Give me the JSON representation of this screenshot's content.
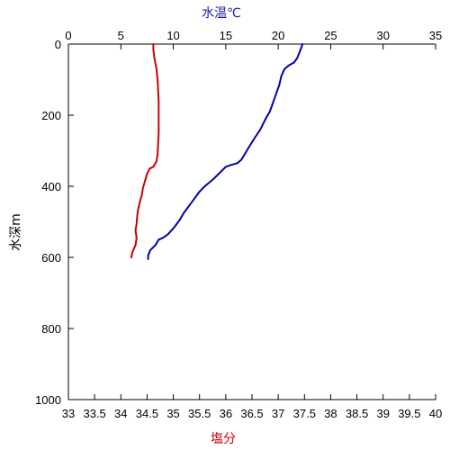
{
  "chart_data": {
    "type": "line",
    "top_axis": {
      "label": "水温℃",
      "label_color": "#1a1aa8",
      "range": [
        0,
        35
      ],
      "ticks": [
        "0",
        "5",
        "10",
        "15",
        "20",
        "25",
        "30",
        "35"
      ],
      "tick_values": [
        0,
        5,
        10,
        15,
        20,
        25,
        30,
        35
      ]
    },
    "bottom_axis": {
      "label": "塩分",
      "label_color": "#cc0000",
      "range": [
        33,
        40
      ],
      "ticks": [
        "33",
        "33.5",
        "34",
        "34.5",
        "35",
        "35.5",
        "36",
        "36.5",
        "37",
        "37.5",
        "38",
        "38.5",
        "39",
        "39.5",
        "40"
      ],
      "tick_values": [
        33,
        33.5,
        34,
        34.5,
        35,
        35.5,
        36,
        36.5,
        37,
        37.5,
        38,
        38.5,
        39,
        39.5,
        40
      ]
    },
    "y_axis": {
      "label": "水深m",
      "label_color": "#000000",
      "range": [
        0,
        1000
      ],
      "inverted": true,
      "ticks": [
        "0",
        "200",
        "400",
        "600",
        "800",
        "1000"
      ],
      "tick_values": [
        0,
        200,
        400,
        600,
        800,
        1000
      ]
    },
    "grid": false,
    "series": [
      {
        "axis": "top",
        "color": "#0000aa",
        "points": [
          [
            22.3,
            0
          ],
          [
            22.2,
            10
          ],
          [
            22.0,
            25
          ],
          [
            21.8,
            40
          ],
          [
            21.5,
            52
          ],
          [
            21.0,
            60
          ],
          [
            20.6,
            70
          ],
          [
            20.3,
            90
          ],
          [
            20.1,
            115
          ],
          [
            19.8,
            140
          ],
          [
            19.5,
            165
          ],
          [
            19.2,
            190
          ],
          [
            18.8,
            210
          ],
          [
            18.3,
            240
          ],
          [
            17.8,
            262
          ],
          [
            17.3,
            285
          ],
          [
            16.9,
            305
          ],
          [
            16.5,
            325
          ],
          [
            16.1,
            335
          ],
          [
            15.5,
            340
          ],
          [
            15.0,
            345
          ],
          [
            14.5,
            360
          ],
          [
            13.8,
            380
          ],
          [
            13.0,
            400
          ],
          [
            12.5,
            415
          ],
          [
            12.0,
            435
          ],
          [
            11.5,
            455
          ],
          [
            11.0,
            475
          ],
          [
            10.6,
            495
          ],
          [
            10.1,
            515
          ],
          [
            9.5,
            535
          ],
          [
            9.0,
            545
          ],
          [
            8.6,
            550
          ],
          [
            8.3,
            565
          ],
          [
            7.8,
            580
          ],
          [
            7.6,
            595
          ],
          [
            7.6,
            605
          ]
        ]
      },
      {
        "axis": "bottom",
        "color": "#cc0000",
        "points": [
          [
            34.62,
            0
          ],
          [
            34.62,
            15
          ],
          [
            34.64,
            40
          ],
          [
            34.68,
            70
          ],
          [
            34.7,
            100
          ],
          [
            34.71,
            130
          ],
          [
            34.72,
            160
          ],
          [
            34.72,
            190
          ],
          [
            34.72,
            220
          ],
          [
            34.72,
            250
          ],
          [
            34.71,
            280
          ],
          [
            34.7,
            310
          ],
          [
            34.68,
            330
          ],
          [
            34.62,
            345
          ],
          [
            34.55,
            350
          ],
          [
            34.5,
            365
          ],
          [
            34.46,
            385
          ],
          [
            34.42,
            405
          ],
          [
            34.4,
            425
          ],
          [
            34.36,
            445
          ],
          [
            34.33,
            465
          ],
          [
            34.31,
            485
          ],
          [
            34.3,
            505
          ],
          [
            34.28,
            525
          ],
          [
            34.3,
            545
          ],
          [
            34.28,
            565
          ],
          [
            34.25,
            575
          ],
          [
            34.22,
            585
          ],
          [
            34.2,
            600
          ]
        ]
      }
    ]
  }
}
